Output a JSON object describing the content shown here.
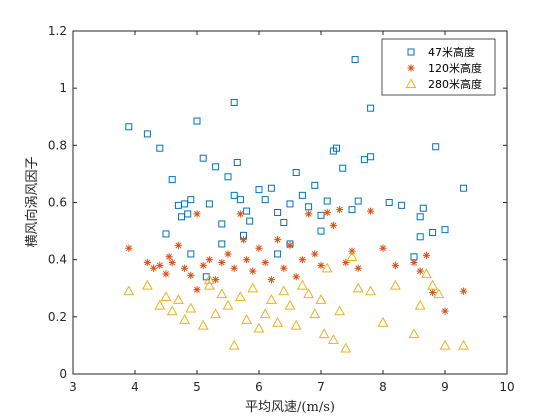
{
  "chart_data": {
    "type": "scatter",
    "title": "",
    "xlabel": "平均风速/(m/s)",
    "ylabel": "横风向涡风因子",
    "xlim": [
      3,
      10
    ],
    "ylim": [
      0,
      1.2
    ],
    "xticks": [
      "3",
      "4",
      "5",
      "6",
      "7",
      "8",
      "9",
      "10"
    ],
    "yticks": [
      "0",
      "0.2",
      "0.4",
      "0.6",
      "0.8",
      "1",
      "1.2"
    ],
    "xtick_values": [
      3,
      4,
      5,
      6,
      7,
      8,
      9,
      10
    ],
    "ytick_values": [
      0,
      0.2,
      0.4,
      0.6,
      0.8,
      1.0,
      1.2
    ],
    "grid": false,
    "legend_position": "top-right",
    "series": [
      {
        "name": "47米高度",
        "marker": "square",
        "color": "#0072BD",
        "points": [
          [
            3.9,
            0.865
          ],
          [
            4.2,
            0.84
          ],
          [
            4.4,
            0.79
          ],
          [
            4.6,
            0.68
          ],
          [
            4.7,
            0.59
          ],
          [
            4.75,
            0.55
          ],
          [
            4.8,
            0.595
          ],
          [
            4.85,
            0.56
          ],
          [
            4.9,
            0.61
          ],
          [
            5.0,
            0.885
          ],
          [
            5.1,
            0.755
          ],
          [
            5.2,
            0.595
          ],
          [
            5.3,
            0.725
          ],
          [
            5.4,
            0.525
          ],
          [
            5.5,
            0.69
          ],
          [
            5.6,
            0.95
          ],
          [
            5.6,
            0.625
          ],
          [
            5.65,
            0.74
          ],
          [
            5.7,
            0.61
          ],
          [
            5.8,
            0.57
          ],
          [
            5.85,
            0.535
          ],
          [
            6.0,
            0.645
          ],
          [
            6.1,
            0.61
          ],
          [
            6.2,
            0.65
          ],
          [
            6.3,
            0.565
          ],
          [
            6.4,
            0.53
          ],
          [
            6.5,
            0.595
          ],
          [
            6.6,
            0.705
          ],
          [
            6.7,
            0.625
          ],
          [
            6.8,
            0.585
          ],
          [
            6.9,
            0.66
          ],
          [
            7.0,
            0.555
          ],
          [
            7.1,
            0.605
          ],
          [
            7.2,
            0.78
          ],
          [
            7.25,
            0.79
          ],
          [
            7.35,
            0.72
          ],
          [
            7.5,
            0.575
          ],
          [
            7.55,
            1.1
          ],
          [
            7.6,
            0.605
          ],
          [
            7.7,
            0.75
          ],
          [
            7.8,
            0.93
          ],
          [
            7.8,
            0.76
          ],
          [
            8.1,
            0.6
          ],
          [
            8.3,
            0.59
          ],
          [
            8.5,
            0.41
          ],
          [
            8.6,
            0.55
          ],
          [
            8.65,
            0.58
          ],
          [
            8.8,
            0.495
          ],
          [
            8.85,
            0.795
          ],
          [
            9.0,
            0.505
          ],
          [
            9.3,
            0.65
          ],
          [
            4.5,
            0.49
          ],
          [
            4.9,
            0.42
          ],
          [
            5.15,
            0.34
          ],
          [
            5.4,
            0.455
          ],
          [
            5.75,
            0.485
          ],
          [
            6.3,
            0.42
          ],
          [
            6.5,
            0.455
          ],
          [
            7.0,
            0.5
          ],
          [
            8.6,
            0.48
          ]
        ]
      },
      {
        "name": "120米高度",
        "marker": "asterisk",
        "color": "#D95319",
        "points": [
          [
            3.9,
            0.44
          ],
          [
            4.2,
            0.39
          ],
          [
            4.4,
            0.38
          ],
          [
            4.5,
            0.35
          ],
          [
            4.55,
            0.41
          ],
          [
            4.6,
            0.39
          ],
          [
            4.7,
            0.45
          ],
          [
            4.8,
            0.37
          ],
          [
            4.9,
            0.345
          ],
          [
            5.0,
            0.56
          ],
          [
            5.0,
            0.295
          ],
          [
            5.1,
            0.38
          ],
          [
            5.2,
            0.4
          ],
          [
            5.3,
            0.33
          ],
          [
            5.4,
            0.39
          ],
          [
            5.5,
            0.42
          ],
          [
            5.6,
            0.37
          ],
          [
            5.7,
            0.56
          ],
          [
            5.75,
            0.47
          ],
          [
            5.8,
            0.4
          ],
          [
            5.9,
            0.36
          ],
          [
            6.0,
            0.44
          ],
          [
            6.1,
            0.39
          ],
          [
            6.2,
            0.33
          ],
          [
            6.3,
            0.47
          ],
          [
            6.4,
            0.37
          ],
          [
            6.5,
            0.45
          ],
          [
            6.6,
            0.34
          ],
          [
            6.8,
            0.56
          ],
          [
            6.9,
            0.42
          ],
          [
            7.0,
            0.38
          ],
          [
            7.1,
            0.565
          ],
          [
            7.2,
            0.52
          ],
          [
            7.3,
            0.575
          ],
          [
            7.4,
            0.39
          ],
          [
            7.5,
            0.43
          ],
          [
            7.6,
            0.37
          ],
          [
            7.8,
            0.57
          ],
          [
            8.0,
            0.44
          ],
          [
            8.2,
            0.38
          ],
          [
            8.5,
            0.39
          ],
          [
            8.6,
            0.36
          ],
          [
            8.7,
            0.415
          ],
          [
            8.8,
            0.285
          ],
          [
            9.0,
            0.22
          ],
          [
            9.3,
            0.29
          ],
          [
            4.3,
            0.37
          ],
          [
            6.7,
            0.4
          ]
        ]
      },
      {
        "name": "280米高度",
        "marker": "triangle",
        "color": "#EDB120",
        "points": [
          [
            3.9,
            0.29
          ],
          [
            4.2,
            0.31
          ],
          [
            4.4,
            0.24
          ],
          [
            4.5,
            0.27
          ],
          [
            4.6,
            0.22
          ],
          [
            4.7,
            0.26
          ],
          [
            4.8,
            0.19
          ],
          [
            4.9,
            0.23
          ],
          [
            5.1,
            0.17
          ],
          [
            5.2,
            0.31
          ],
          [
            5.3,
            0.21
          ],
          [
            5.4,
            0.28
          ],
          [
            5.5,
            0.24
          ],
          [
            5.6,
            0.1
          ],
          [
            5.7,
            0.27
          ],
          [
            5.8,
            0.19
          ],
          [
            5.9,
            0.3
          ],
          [
            6.0,
            0.16
          ],
          [
            6.1,
            0.21
          ],
          [
            6.2,
            0.26
          ],
          [
            6.3,
            0.18
          ],
          [
            6.4,
            0.29
          ],
          [
            6.5,
            0.24
          ],
          [
            6.6,
            0.17
          ],
          [
            6.8,
            0.28
          ],
          [
            6.9,
            0.21
          ],
          [
            7.0,
            0.26
          ],
          [
            7.1,
            0.37
          ],
          [
            7.2,
            0.12
          ],
          [
            7.3,
            0.22
          ],
          [
            7.4,
            0.09
          ],
          [
            7.5,
            0.41
          ],
          [
            7.6,
            0.3
          ],
          [
            7.8,
            0.29
          ],
          [
            8.0,
            0.18
          ],
          [
            8.2,
            0.31
          ],
          [
            8.5,
            0.14
          ],
          [
            8.6,
            0.24
          ],
          [
            8.7,
            0.35
          ],
          [
            8.8,
            0.31
          ],
          [
            9.0,
            0.1
          ],
          [
            9.3,
            0.1
          ],
          [
            5.2,
            0.33
          ],
          [
            6.7,
            0.31
          ],
          [
            7.05,
            0.14
          ],
          [
            8.9,
            0.28
          ]
        ]
      }
    ]
  }
}
